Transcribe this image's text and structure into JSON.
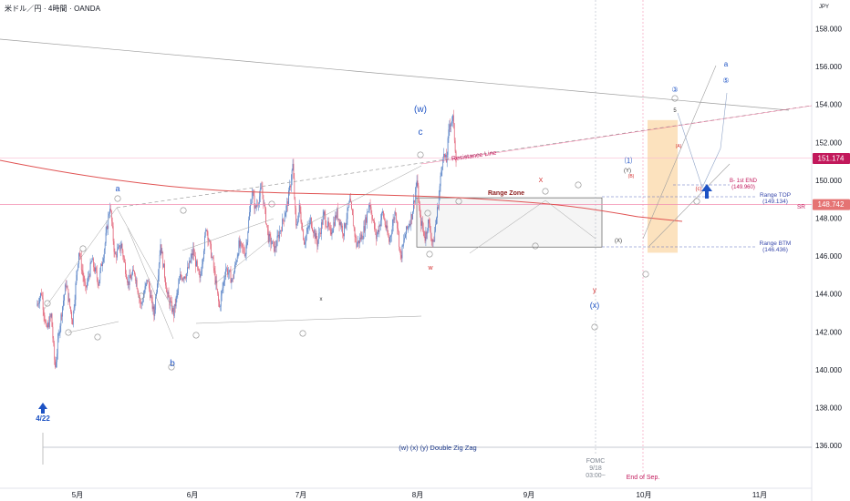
{
  "header": {
    "title": "米ドル／円 · 4時間 · OANDA",
    "currency": "JPY"
  },
  "chart_data": {
    "type": "candlestick",
    "symbol": "USD/JPY",
    "timeframe": "4H",
    "source": "OANDA",
    "y_axis": {
      "ticks": [
        "158.000",
        "156.000",
        "154.000",
        "152.000",
        "150.000",
        "148.000",
        "146.000",
        "144.000",
        "142.000",
        "140.000",
        "138.000",
        "136.000"
      ],
      "ylim": [
        135.4,
        159.3
      ]
    },
    "x_axis": {
      "ticks": [
        "5月",
        "6月",
        "7月",
        "8月",
        "9月",
        "10月",
        "11月"
      ]
    },
    "price_path": [
      {
        "d": 0,
        "p": 143.4
      },
      {
        "d": 1.5,
        "p": 144.1
      },
      {
        "d": 3,
        "p": 142.1
      },
      {
        "d": 4.5,
        "p": 142.9
      },
      {
        "d": 5.7,
        "p": 140.1
      },
      {
        "d": 7,
        "p": 142.2
      },
      {
        "d": 9,
        "p": 144.6
      },
      {
        "d": 11,
        "p": 142.6
      },
      {
        "d": 13,
        "p": 146.3
      },
      {
        "d": 15,
        "p": 144.2
      },
      {
        "d": 17,
        "p": 145.8
      },
      {
        "d": 19,
        "p": 144.6
      },
      {
        "d": 21,
        "p": 146.7
      },
      {
        "d": 22.5,
        "p": 148.7
      },
      {
        "d": 24,
        "p": 146.0
      },
      {
        "d": 26,
        "p": 146.6
      },
      {
        "d": 28,
        "p": 144.6
      },
      {
        "d": 30,
        "p": 145.2
      },
      {
        "d": 32,
        "p": 143.4
      },
      {
        "d": 34,
        "p": 144.8
      },
      {
        "d": 36,
        "p": 142.9
      },
      {
        "d": 38,
        "p": 146.7
      },
      {
        "d": 40,
        "p": 144.0
      },
      {
        "d": 42,
        "p": 143.0
      },
      {
        "d": 44,
        "p": 144.9
      },
      {
        "d": 46,
        "p": 145.1
      },
      {
        "d": 48,
        "p": 146.3
      },
      {
        "d": 50,
        "p": 144.7
      },
      {
        "d": 52,
        "p": 147.6
      },
      {
        "d": 54,
        "p": 145.7
      },
      {
        "d": 56,
        "p": 143.3
      },
      {
        "d": 58,
        "p": 145.4
      },
      {
        "d": 60,
        "p": 144.7
      },
      {
        "d": 62,
        "p": 146.6
      },
      {
        "d": 64,
        "p": 146.2
      },
      {
        "d": 66,
        "p": 149.5
      },
      {
        "d": 67,
        "p": 148.5
      },
      {
        "d": 69,
        "p": 149.6
      },
      {
        "d": 71,
        "p": 147.0
      },
      {
        "d": 73,
        "p": 146.4
      },
      {
        "d": 75,
        "p": 147.6
      },
      {
        "d": 77,
        "p": 148.9
      },
      {
        "d": 78.5,
        "p": 150.8
      },
      {
        "d": 79.5,
        "p": 147.5
      },
      {
        "d": 80.5,
        "p": 148.6
      },
      {
        "d": 82,
        "p": 146.8
      },
      {
        "d": 84,
        "p": 147.9
      },
      {
        "d": 86,
        "p": 146.7
      },
      {
        "d": 88,
        "p": 148.2
      },
      {
        "d": 90,
        "p": 147.2
      },
      {
        "d": 92,
        "p": 148.3
      },
      {
        "d": 94,
        "p": 147.3
      },
      {
        "d": 96,
        "p": 148.9
      },
      {
        "d": 98,
        "p": 146.6
      },
      {
        "d": 100,
        "p": 147.2
      },
      {
        "d": 102,
        "p": 148.9
      },
      {
        "d": 104,
        "p": 147.0
      },
      {
        "d": 106,
        "p": 148.3
      },
      {
        "d": 108,
        "p": 146.8
      },
      {
        "d": 110,
        "p": 148.5
      },
      {
        "d": 111.5,
        "p": 145.9
      },
      {
        "d": 113,
        "p": 147.2
      },
      {
        "d": 115,
        "p": 148.2
      },
      {
        "d": 116.5,
        "p": 150.0
      },
      {
        "d": 117.5,
        "p": 148.0
      },
      {
        "d": 119,
        "p": 147.0
      },
      {
        "d": 120,
        "p": 147.8
      },
      {
        "d": 121.5,
        "p": 146.6
      },
      {
        "d": 123,
        "p": 148.8
      },
      {
        "d": 124.5,
        "p": 151.4
      },
      {
        "d": 125.5,
        "p": 151.0
      },
      {
        "d": 126.5,
        "p": 153.0
      },
      {
        "d": 127.5,
        "p": 153.3
      },
      {
        "d": 128.5,
        "p": 151.2
      }
    ],
    "annotations": {
      "wave_labels": [
        "a",
        "b",
        "c",
        "(w)",
        "(x)",
        "y",
        "a",
        "⑤",
        "③",
        "5",
        "(c)",
        "(Y)",
        "(X)",
        "(B)",
        "(A)",
        "⑴",
        "x",
        "X",
        "w"
      ],
      "texts": {
        "resistance_line": "Resistance Line",
        "range_zone": "Range Zone",
        "first_end": "B- 1st END",
        "first_end_value": "(149.960)",
        "range_top": "Range TOP",
        "range_top_value": "(149.134)",
        "range_btm": "Range BTM",
        "range_btm_value": "(146.436)",
        "sr": "SR",
        "start_date": "4/22",
        "double_zz": "(w) (x) (y) Double Zig Zag",
        "fomc": "FOMC",
        "fomc_date": "9/18",
        "fomc_time": "03:00~",
        "end_of_sep": "End of Sep."
      },
      "price_tags": [
        {
          "value": "151.174",
          "color": "#c2185b"
        },
        {
          "value": "148.742",
          "color": "#e57373"
        }
      ]
    }
  }
}
